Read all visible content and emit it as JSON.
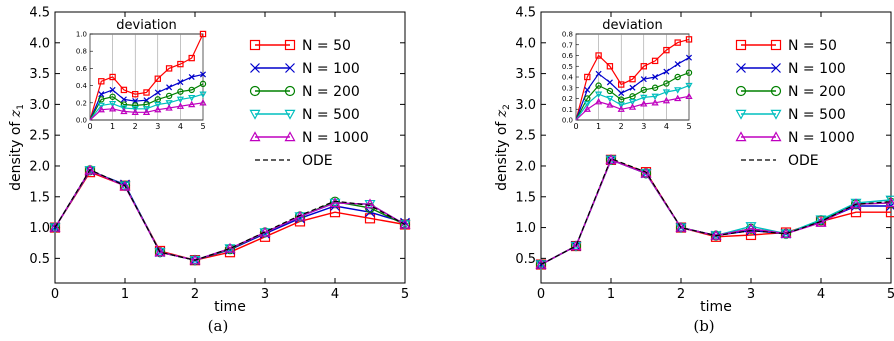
{
  "x_values": [
    0,
    0.5,
    1,
    1.5,
    2,
    2.5,
    3,
    3.5,
    4,
    4.5,
    5
  ],
  "legend_entries": [
    "N = 50",
    "N = 100",
    "N = 200",
    "N = 500",
    "N = 1000",
    "ODE"
  ],
  "series_colors": {
    "N = 50": "#ff0000",
    "N = 100": "#0000cc",
    "N = 200": "#008000",
    "N = 500": "#00bfbf",
    "N = 1000": "#bf00bf",
    "ODE": "#000000"
  },
  "series_markers": {
    "N = 50": "square",
    "N = 100": "x",
    "N = 200": "circle",
    "N = 500": "triangle-down",
    "N = 1000": "triangle-up",
    "ODE": "none"
  },
  "chart_data": [
    {
      "type": "line",
      "panel_label": "(a)",
      "xlabel": "time",
      "ylabel": "density of z",
      "ylabel_subscript": "1",
      "xlim": [
        0,
        5
      ],
      "ylim": [
        0.1,
        4.5
      ],
      "xticks": [
        "0",
        "1",
        "2",
        "3",
        "4",
        "5"
      ],
      "yticks": [
        "0.5",
        "1.0",
        "1.5",
        "2.0",
        "2.5",
        "3.0",
        "3.5",
        "4.0",
        "4.5"
      ],
      "legend_position": "top-right",
      "series": [
        {
          "name": "N = 50",
          "values": [
            1.0,
            1.9,
            1.68,
            0.62,
            0.47,
            0.6,
            0.85,
            1.1,
            1.25,
            1.15,
            1.05
          ]
        },
        {
          "name": "N = 100",
          "values": [
            1.0,
            1.92,
            1.7,
            0.6,
            0.47,
            0.64,
            0.9,
            1.15,
            1.35,
            1.25,
            1.08
          ]
        },
        {
          "name": "N = 200",
          "values": [
            1.0,
            1.93,
            1.68,
            0.6,
            0.47,
            0.65,
            0.92,
            1.18,
            1.42,
            1.32,
            1.05
          ]
        },
        {
          "name": "N = 500",
          "values": [
            1.0,
            1.93,
            1.68,
            0.6,
            0.47,
            0.66,
            0.92,
            1.18,
            1.4,
            1.38,
            1.05
          ]
        },
        {
          "name": "N = 1000",
          "values": [
            1.0,
            1.93,
            1.67,
            0.6,
            0.47,
            0.66,
            0.92,
            1.18,
            1.4,
            1.38,
            1.05
          ]
        },
        {
          "name": "ODE",
          "values": [
            1.0,
            1.94,
            1.68,
            0.6,
            0.47,
            0.66,
            0.93,
            1.2,
            1.43,
            1.36,
            1.05
          ]
        }
      ],
      "inset": {
        "title": "deviation",
        "xlim": [
          0,
          5
        ],
        "ylim": [
          0,
          1.0
        ],
        "xticks": [
          "0",
          "1",
          "2",
          "3",
          "4",
          "5"
        ],
        "yticks": [
          "0.0",
          "0.2",
          "0.4",
          "0.6",
          "0.8",
          "1.0"
        ],
        "series": [
          {
            "name": "N = 50",
            "values": [
              0.0,
              0.45,
              0.5,
              0.35,
              0.3,
              0.32,
              0.48,
              0.6,
              0.65,
              0.72,
              1.0
            ]
          },
          {
            "name": "N = 100",
            "values": [
              0.0,
              0.3,
              0.35,
              0.24,
              0.22,
              0.23,
              0.32,
              0.38,
              0.44,
              0.5,
              0.53
            ]
          },
          {
            "name": "N = 200",
            "values": [
              0.0,
              0.24,
              0.27,
              0.18,
              0.17,
              0.18,
              0.24,
              0.28,
              0.33,
              0.35,
              0.42
            ]
          },
          {
            "name": "N = 500",
            "values": [
              0.0,
              0.17,
              0.19,
              0.14,
              0.13,
              0.13,
              0.18,
              0.2,
              0.24,
              0.26,
              0.3
            ]
          },
          {
            "name": "N = 1000",
            "values": [
              0.0,
              0.12,
              0.13,
              0.1,
              0.09,
              0.09,
              0.12,
              0.14,
              0.16,
              0.18,
              0.2
            ]
          }
        ]
      }
    },
    {
      "type": "line",
      "panel_label": "(b)",
      "xlabel": "time",
      "ylabel": "density of z",
      "ylabel_subscript": "2",
      "xlim": [
        0,
        5
      ],
      "ylim": [
        0.1,
        4.5
      ],
      "xticks": [
        "0",
        "1",
        "2",
        "3",
        "4",
        "5"
      ],
      "yticks": [
        "0.5",
        "1.0",
        "1.5",
        "2.0",
        "2.5",
        "3.0",
        "3.5",
        "4.0",
        "4.5"
      ],
      "legend_position": "top-right",
      "series": [
        {
          "name": "N = 50",
          "values": [
            0.4,
            0.7,
            2.1,
            1.9,
            1.0,
            0.85,
            0.88,
            0.92,
            1.1,
            1.25,
            1.25
          ]
        },
        {
          "name": "N = 100",
          "values": [
            0.4,
            0.7,
            2.1,
            1.88,
            1.0,
            0.87,
            0.95,
            0.9,
            1.1,
            1.35,
            1.35
          ]
        },
        {
          "name": "N = 200",
          "values": [
            0.4,
            0.7,
            2.1,
            1.88,
            1.0,
            0.87,
            0.98,
            0.9,
            1.12,
            1.38,
            1.4
          ]
        },
        {
          "name": "N = 500",
          "values": [
            0.4,
            0.7,
            2.1,
            1.88,
            1.0,
            0.87,
            1.02,
            0.9,
            1.13,
            1.4,
            1.45
          ]
        },
        {
          "name": "N = 1000",
          "values": [
            0.4,
            0.7,
            2.1,
            1.88,
            1.0,
            0.87,
            0.98,
            0.9,
            1.08,
            1.38,
            1.4
          ]
        },
        {
          "name": "ODE",
          "values": [
            0.4,
            0.7,
            2.12,
            1.9,
            1.0,
            0.87,
            0.95,
            0.9,
            1.1,
            1.38,
            1.42
          ]
        }
      ],
      "inset": {
        "title": "deviation",
        "xlim": [
          0,
          5
        ],
        "ylim": [
          0,
          0.8
        ],
        "xticks": [
          "0",
          "1",
          "2",
          "3",
          "4",
          "5"
        ],
        "yticks": [
          "0.0",
          "0.1",
          "0.2",
          "0.3",
          "0.4",
          "0.5",
          "0.6",
          "0.7",
          "0.8"
        ],
        "series": [
          {
            "name": "N = 50",
            "values": [
              0.0,
              0.4,
              0.6,
              0.5,
              0.33,
              0.38,
              0.5,
              0.55,
              0.65,
              0.72,
              0.75
            ]
          },
          {
            "name": "N = 100",
            "values": [
              0.0,
              0.28,
              0.43,
              0.35,
              0.25,
              0.3,
              0.38,
              0.4,
              0.45,
              0.52,
              0.58
            ]
          },
          {
            "name": "N = 200",
            "values": [
              0.0,
              0.2,
              0.32,
              0.27,
              0.19,
              0.22,
              0.28,
              0.3,
              0.34,
              0.4,
              0.44
            ]
          },
          {
            "name": "N = 500",
            "values": [
              0.0,
              0.15,
              0.24,
              0.2,
              0.14,
              0.17,
              0.21,
              0.22,
              0.26,
              0.28,
              0.32
            ]
          },
          {
            "name": "N = 1000",
            "values": [
              0.0,
              0.1,
              0.17,
              0.14,
              0.1,
              0.12,
              0.15,
              0.16,
              0.18,
              0.2,
              0.22
            ]
          }
        ]
      }
    }
  ]
}
